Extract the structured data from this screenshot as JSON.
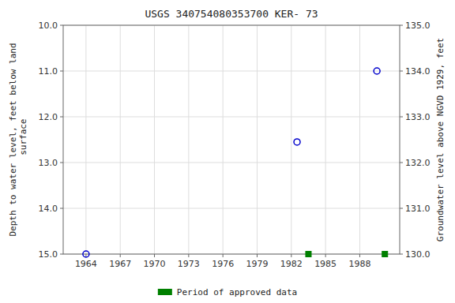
{
  "chart_data": {
    "type": "scatter",
    "title": "USGS 340754080353700 KER-  73",
    "y_label": "Depth to water level, feet below land\n surface",
    "y2_label": "Groundwater level above NGVD 1929, feet",
    "xlim": [
      1962.0,
      1991.5
    ],
    "xticks": [
      1964,
      1967,
      1970,
      1973,
      1976,
      1979,
      1982,
      1985,
      1988
    ],
    "ylim": [
      15.0,
      10.0
    ],
    "yticks": [
      {
        "value": 10.0,
        "label": "10.0"
      },
      {
        "value": 11.0,
        "label": "11.0"
      },
      {
        "value": 12.0,
        "label": "12.0"
      },
      {
        "value": 13.0,
        "label": "13.0"
      },
      {
        "value": 14.0,
        "label": "14.0"
      },
      {
        "value": 15.0,
        "label": "15.0"
      }
    ],
    "y2lim": [
      130.0,
      135.0
    ],
    "y2ticks": [
      {
        "value": 135.0,
        "label": "135.0"
      },
      {
        "value": 134.0,
        "label": "134.0"
      },
      {
        "value": 133.0,
        "label": "133.0"
      },
      {
        "value": 132.0,
        "label": "132.0"
      },
      {
        "value": 131.0,
        "label": "131.0"
      },
      {
        "value": 130.0,
        "label": "130.0"
      }
    ],
    "grid": true,
    "legend": "bottom",
    "series": [
      {
        "x": [
          1964.0,
          1982.5,
          1989.5
        ],
        "values": [
          15.0,
          12.55,
          11.0
        ],
        "color": "#0000cc",
        "marker": "circle"
      },
      {
        "name": "Period of approved data",
        "x": [
          1983.5,
          1990.2
        ],
        "values": [
          15.0,
          15.0
        ],
        "color": "#008000",
        "marker": "square"
      }
    ]
  }
}
